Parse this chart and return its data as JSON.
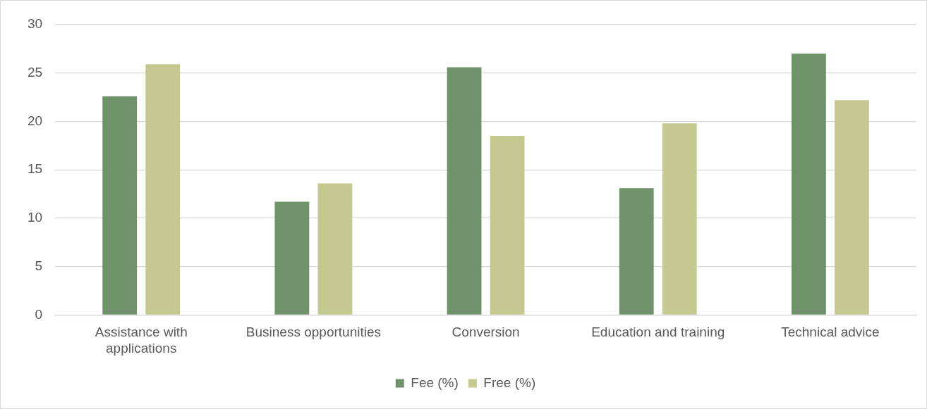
{
  "chart_data": {
    "type": "bar",
    "categories": [
      "Assistance with applications",
      "Business opportunities",
      "Conversion",
      "Education and training",
      "Technical advice"
    ],
    "series": [
      {
        "name": "Fee (%)",
        "color": "#70926b",
        "values": [
          22.6,
          11.7,
          25.6,
          13.1,
          27.0
        ]
      },
      {
        "name": "Free (%)",
        "color": "#c4c98f",
        "values": [
          25.9,
          13.6,
          18.5,
          19.8,
          22.2
        ]
      }
    ],
    "ylim": [
      0,
      30
    ],
    "yticks": [
      0,
      5,
      10,
      15,
      20,
      25,
      30
    ],
    "grid": "y",
    "legend": "bottom"
  }
}
